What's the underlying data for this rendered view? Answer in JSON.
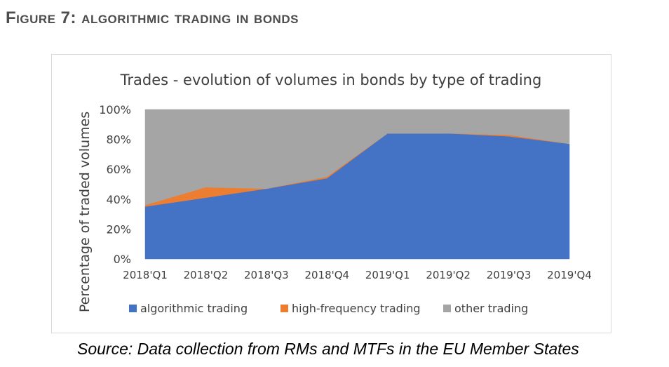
{
  "figure": {
    "title": "Figure 7: algorithmic trading in bonds",
    "source": "Source: Data collection from RMs and MTFs in the EU Member States"
  },
  "chart_data": {
    "type": "area",
    "stacked": true,
    "title": "Trades - evolution of volumes in bonds by type of trading",
    "xlabel": "",
    "ylabel": "Percentage of traded volumes",
    "categories": [
      "2018'Q1",
      "2018'Q2",
      "2018'Q3",
      "2018'Q4",
      "2019'Q1",
      "2019'Q2",
      "2019'Q3",
      "2019'Q4"
    ],
    "y_ticks": [
      "0%",
      "20%",
      "40%",
      "60%",
      "80%",
      "100%"
    ],
    "ylim": [
      0,
      100
    ],
    "grid": false,
    "legend_position": "bottom",
    "series": [
      {
        "name": "algorithmic trading",
        "color": "#4472C4",
        "values": [
          35,
          41,
          47,
          54,
          84,
          84,
          82,
          77
        ]
      },
      {
        "name": "high-frequency trading",
        "color": "#ED7D31",
        "values": [
          1,
          7,
          0,
          1,
          0,
          0,
          1,
          0
        ]
      },
      {
        "name": "other trading",
        "color": "#A5A5A5",
        "values": [
          64,
          52,
          53,
          45,
          16,
          16,
          17,
          23
        ]
      }
    ]
  }
}
